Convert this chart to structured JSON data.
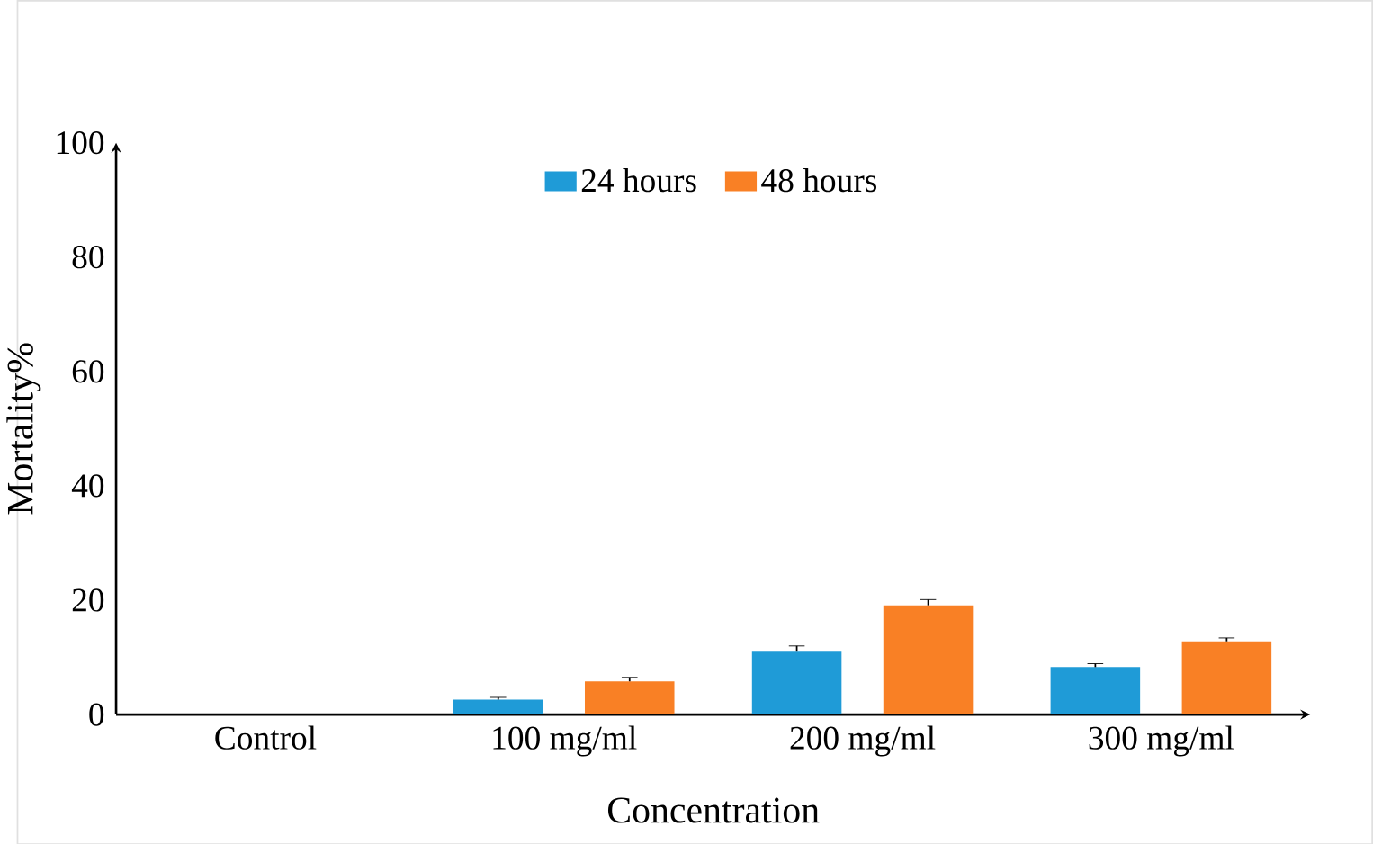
{
  "chart_data": {
    "type": "bar",
    "xlabel": "Concentration",
    "ylabel": "Mortality%",
    "categories": [
      "Control",
      "100 mg/ml",
      "200 mg/ml",
      "300 mg/ml"
    ],
    "series": [
      {
        "name": "24 hours",
        "color": "#1f9bd7",
        "values": [
          0,
          2.6,
          11,
          8.3
        ],
        "errors": [
          null,
          0.4,
          1,
          0.6
        ]
      },
      {
        "name": "48 hours",
        "color": "#f98025",
        "values": [
          0,
          5.8,
          19.1,
          12.8
        ],
        "errors": [
          null,
          0.7,
          1,
          0.6
        ]
      }
    ],
    "ylim": [
      0,
      100
    ],
    "yticks": [
      0,
      20,
      40,
      60,
      80,
      100
    ],
    "grid": false,
    "legend": "top"
  }
}
